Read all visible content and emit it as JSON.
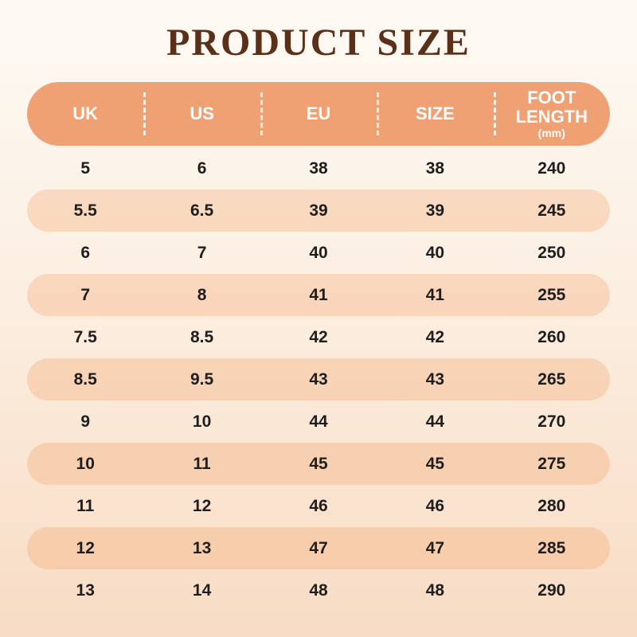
{
  "title": "PRODUCT SIZE",
  "table": {
    "headers": [
      "UK",
      "US",
      "EU",
      "SIZE",
      "FOOT LENGTH"
    ],
    "unit_label": "(mm)",
    "rows": [
      [
        "5",
        "6",
        "38",
        "38",
        "240"
      ],
      [
        "5.5",
        "6.5",
        "39",
        "39",
        "245"
      ],
      [
        "6",
        "7",
        "40",
        "40",
        "250"
      ],
      [
        "7",
        "8",
        "41",
        "41",
        "255"
      ],
      [
        "7.5",
        "8.5",
        "42",
        "42",
        "260"
      ],
      [
        "8.5",
        "9.5",
        "43",
        "43",
        "265"
      ],
      [
        "9",
        "10",
        "44",
        "44",
        "270"
      ],
      [
        "10",
        "11",
        "45",
        "45",
        "275"
      ],
      [
        "11",
        "12",
        "46",
        "46",
        "280"
      ],
      [
        "12",
        "13",
        "47",
        "47",
        "285"
      ],
      [
        "13",
        "14",
        "48",
        "48",
        "290"
      ]
    ]
  },
  "colors": {
    "header_background": "#F0A173",
    "band_background": "#F8D9BC",
    "title_text": "#5A3118",
    "header_text": "#FFFFFF",
    "cell_text": "#1E1E1E"
  },
  "chart_data": {
    "type": "table",
    "title": "PRODUCT SIZE",
    "columns": [
      "UK",
      "US",
      "EU",
      "SIZE",
      "FOOT LENGTH (mm)"
    ],
    "rows": [
      [
        "5",
        "6",
        "38",
        "38",
        "240"
      ],
      [
        "5.5",
        "6.5",
        "39",
        "39",
        "245"
      ],
      [
        "6",
        "7",
        "40",
        "40",
        "250"
      ],
      [
        "7",
        "8",
        "41",
        "41",
        "255"
      ],
      [
        "7.5",
        "8.5",
        "42",
        "42",
        "260"
      ],
      [
        "8.5",
        "9.5",
        "43",
        "43",
        "265"
      ],
      [
        "9",
        "10",
        "44",
        "44",
        "270"
      ],
      [
        "10",
        "11",
        "45",
        "45",
        "275"
      ],
      [
        "11",
        "12",
        "46",
        "46",
        "280"
      ],
      [
        "12",
        "13",
        "47",
        "47",
        "285"
      ],
      [
        "13",
        "14",
        "48",
        "48",
        "290"
      ]
    ]
  }
}
